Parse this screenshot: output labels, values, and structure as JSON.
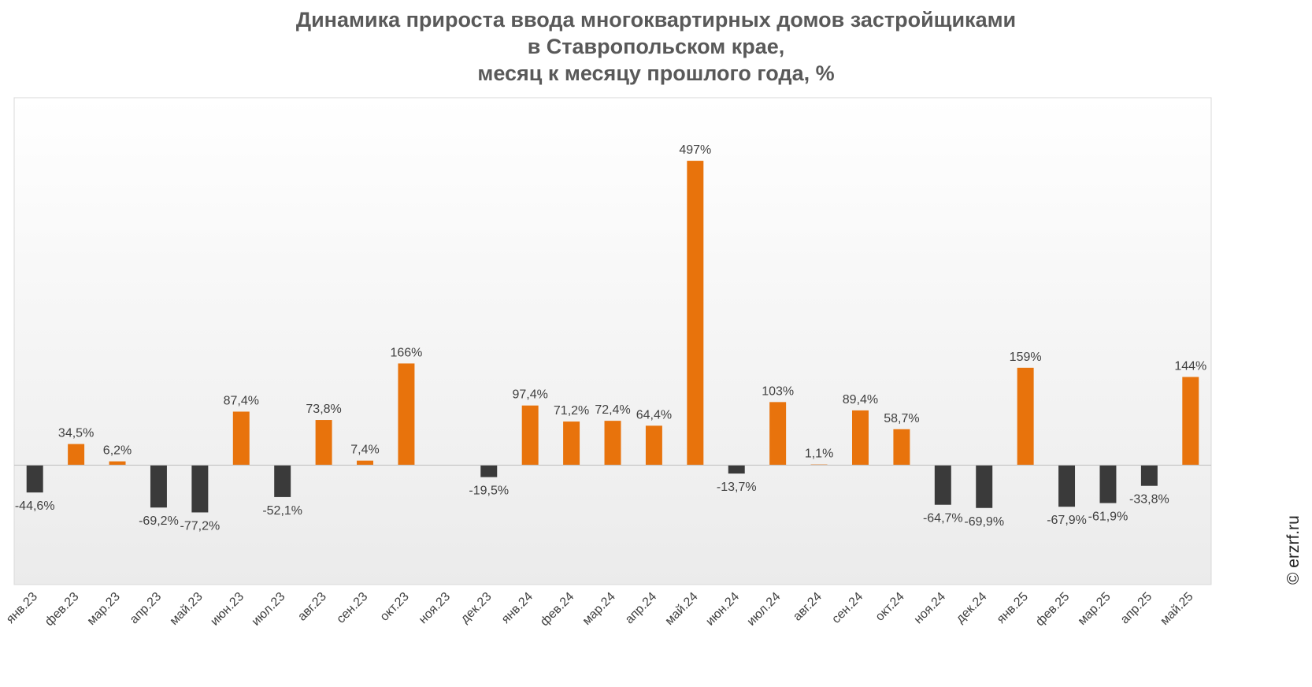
{
  "title": {
    "line1": "Динамика прироста ввода многоквартирных домов застройщиками",
    "line2": "в Ставропольском крае,",
    "line3": "месяц к месяцу прошлого года, %"
  },
  "watermark": "© erzrf.ru",
  "colors": {
    "positive": "#e8730c",
    "negative": "#3a3a3a",
    "label": "#404040",
    "axis": "#bfbfbf"
  },
  "chart_data": {
    "type": "bar",
    "categories": [
      "янв.23",
      "фев.23",
      "мар.23",
      "апр.23",
      "май.23",
      "июн.23",
      "июл.23",
      "авг.23",
      "сен.23",
      "окт.23",
      "ноя.23",
      "дек.23",
      "янв.24",
      "фев.24",
      "мар.24",
      "апр.24",
      "май.24",
      "июн.24",
      "июл.24",
      "авг.24",
      "сен.24",
      "окт.24",
      "ноя.24",
      "дек.24",
      "янв.25",
      "фев.25",
      "мар.25",
      "апр.25",
      "май.25"
    ],
    "values": [
      -44.6,
      34.5,
      6.2,
      -69.2,
      -77.2,
      87.4,
      -52.1,
      73.8,
      7.4,
      166,
      null,
      -19.5,
      97.4,
      71.2,
      72.4,
      64.4,
      497,
      -13.7,
      103,
      1.1,
      89.4,
      58.7,
      -64.7,
      -69.9,
      159,
      -67.9,
      -61.9,
      -33.8,
      144
    ],
    "labels": [
      "-44,6%",
      "34,5%",
      "6,2%",
      "-69,2%",
      "-77,2%",
      "87,4%",
      "-52,1%",
      "73,8%",
      "7,4%",
      "166%",
      "",
      "-19,5%",
      "97,4%",
      "71,2%",
      "72,4%",
      "64,4%",
      "497%",
      "-13,7%",
      "103%",
      "1,1%",
      "89,4%",
      "58,7%",
      "-64,7%",
      "-69,9%",
      "159%",
      "-67,9%",
      "-61,9%",
      "-33,8%",
      "144%"
    ],
    "ylim": [
      -195,
      600
    ],
    "grid": false,
    "legend": "none"
  }
}
